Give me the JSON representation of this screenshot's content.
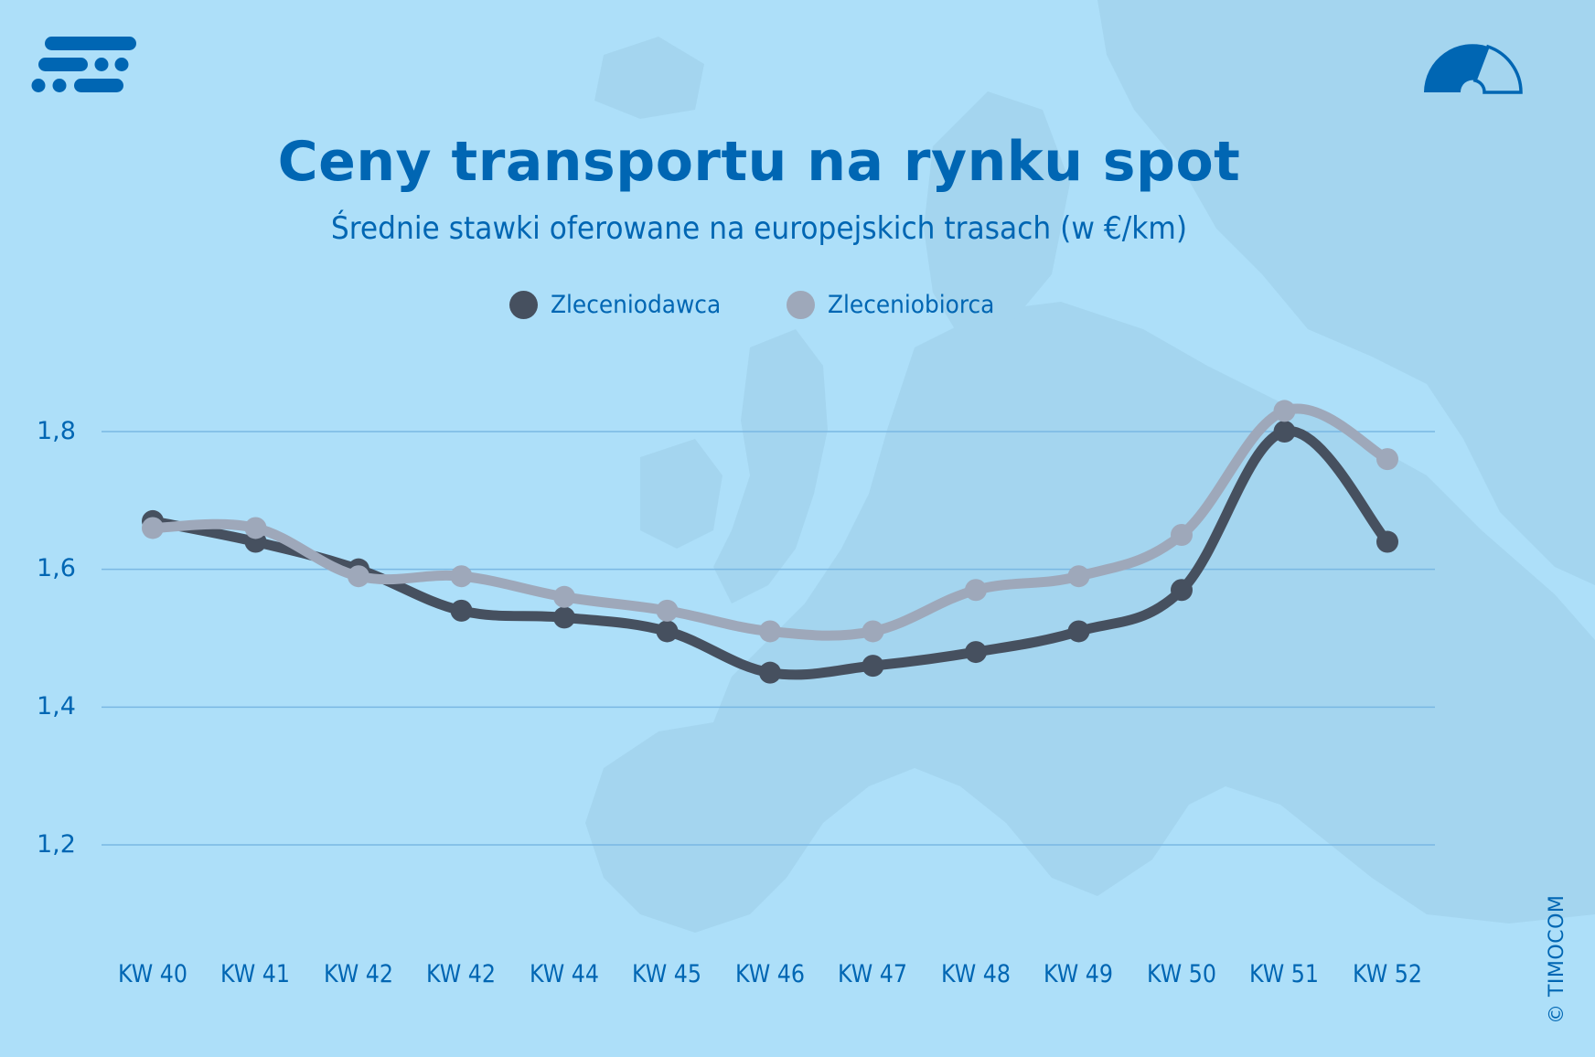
{
  "header": {
    "title": "Ceny transportu na rynku spot",
    "subtitle": "Średnie stawki oferowane na europejskich trasach (w €/km)",
    "logo_icon": "timocom-logo-icon",
    "gauge_icon": "speedometer-gauge-icon"
  },
  "legend": [
    {
      "label": "Zleceniodawca",
      "color": "#46505f"
    },
    {
      "label": "Zleceniobiorca",
      "color": "#9ea8ba"
    }
  ],
  "axes": {
    "y_ticks": [
      "1,8",
      "1,6",
      "1,4",
      "1,2"
    ],
    "x_ticks": [
      "KW 40",
      "KW 41",
      "KW 42",
      "KW 42",
      "KW 44",
      "KW 45",
      "KW 46",
      "KW 47",
      "KW 48",
      "KW 49",
      "KW 50",
      "KW 51",
      "KW 52"
    ]
  },
  "footer": {
    "copyright": "© TIMOCOM"
  },
  "colors": {
    "background": "#addff9",
    "brand_blue": "#0066b3",
    "gridline": "#7ab8e3",
    "series_dark": "#46505f",
    "series_light": "#9ea8ba"
  },
  "chart_data": {
    "type": "line",
    "title": "Ceny transportu na rynku spot",
    "subtitle": "Średnie stawki oferowane na europejskich trasach (w €/km)",
    "xlabel": "",
    "ylabel": "€/km",
    "categories": [
      "KW 40",
      "KW 41",
      "KW 42",
      "KW 42",
      "KW 44",
      "KW 45",
      "KW 46",
      "KW 47",
      "KW 48",
      "KW 49",
      "KW 50",
      "KW 51",
      "KW 52"
    ],
    "series": [
      {
        "name": "Zleceniodawca",
        "color": "#46505f",
        "values": [
          1.67,
          1.64,
          1.6,
          1.54,
          1.53,
          1.51,
          1.45,
          1.46,
          1.48,
          1.51,
          1.57,
          1.8,
          1.64
        ]
      },
      {
        "name": "Zleceniobiorca",
        "color": "#9ea8ba",
        "values": [
          1.66,
          1.66,
          1.59,
          1.59,
          1.56,
          1.54,
          1.51,
          1.51,
          1.57,
          1.59,
          1.65,
          1.83,
          1.76
        ]
      }
    ],
    "y_ticks": [
      1.2,
      1.4,
      1.6,
      1.8
    ],
    "ylim": [
      1.1,
      1.9
    ],
    "grid": true,
    "legend_position": "top",
    "smooth": true
  }
}
